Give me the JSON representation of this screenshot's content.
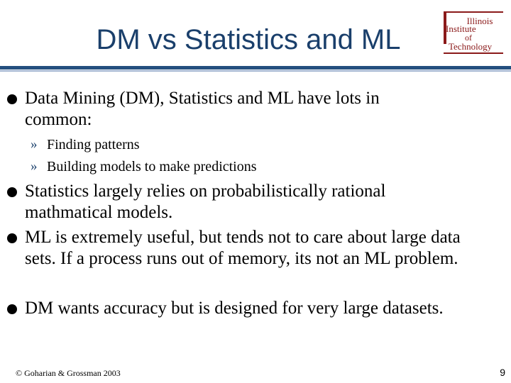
{
  "slide": {
    "title": "DM vs Statistics and ML",
    "logo": {
      "line1": "Illinois",
      "line2": "Institute",
      "line3": "of",
      "line4": "Technology",
      "color": "#8b1a1a"
    },
    "bullets": [
      {
        "text": "Data Mining (DM), Statistics and ML have lots in common:"
      },
      {
        "text": "Statistics largely relies on probabilistically rational mathmatical models."
      },
      {
        "text": "ML is extremely useful, but tends not to care about large data sets. If a process runs out of memory, its not an ML problem."
      },
      {
        "text": "DM wants accuracy but is designed for very large datasets."
      }
    ],
    "subbullets": [
      {
        "marker": "»",
        "text": "Finding patterns"
      },
      {
        "marker": "»",
        "text": "Building models to make predictions"
      }
    ],
    "footer": "© Goharian & Grossman 2003",
    "page_number": "9"
  }
}
